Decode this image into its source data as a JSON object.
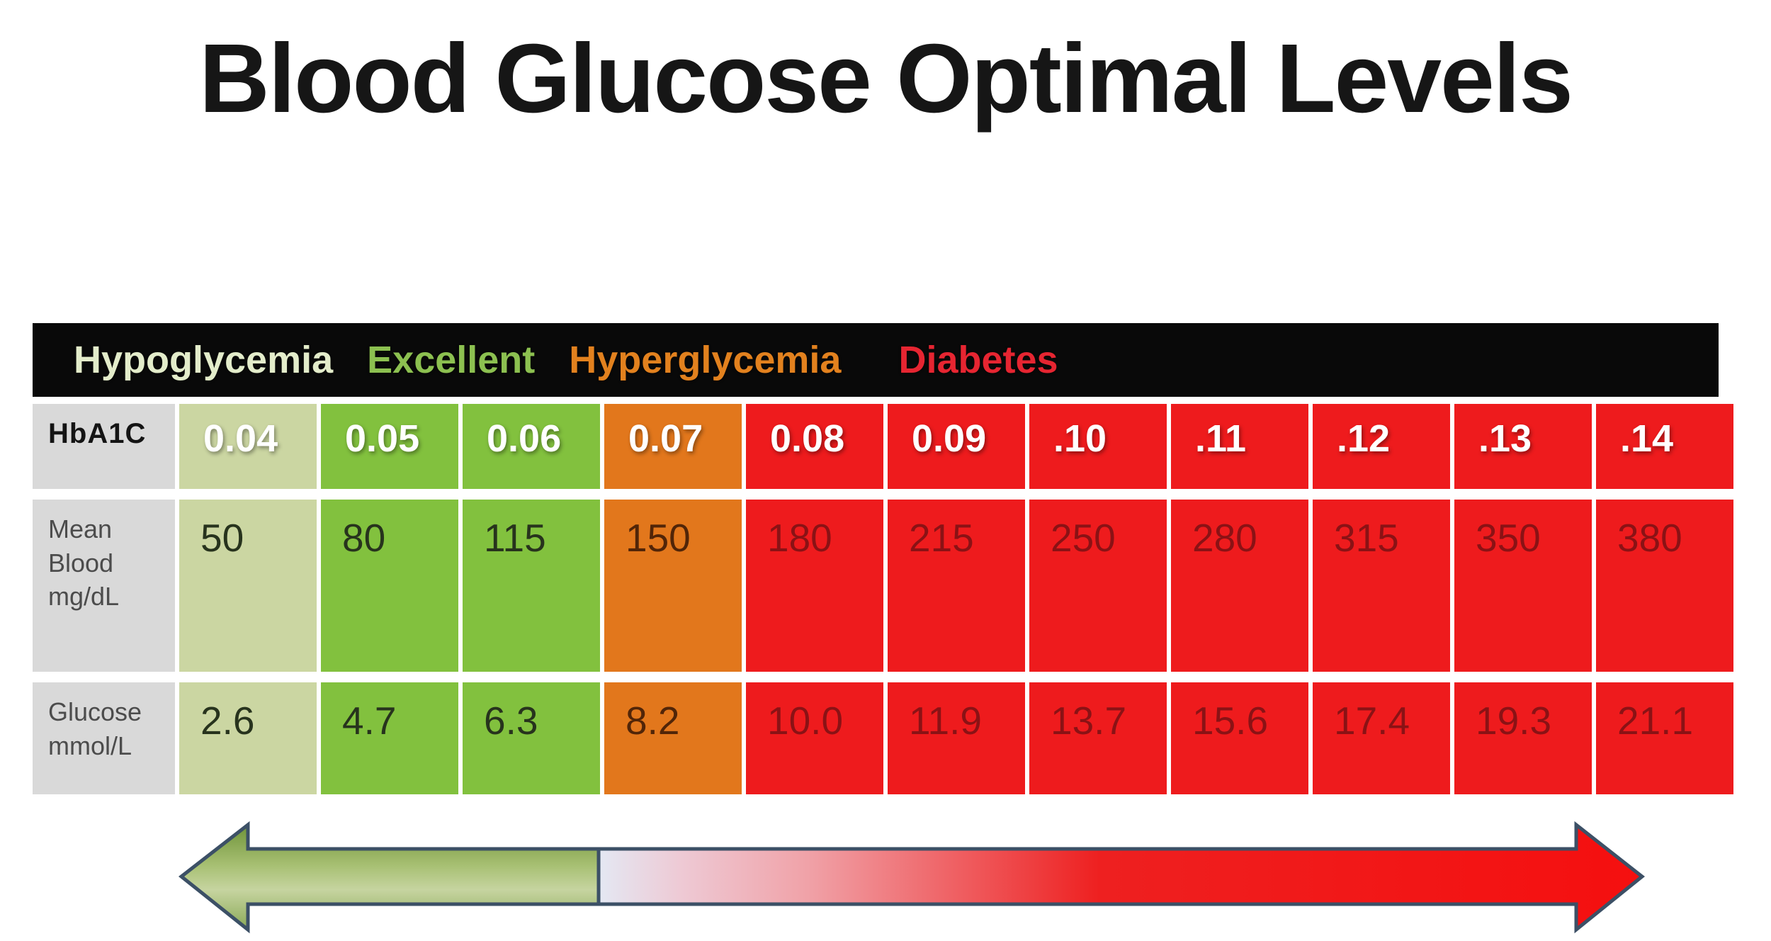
{
  "title": "Blood Glucose Optimal Levels",
  "legend": {
    "items": [
      {
        "key": "hypoglycemia",
        "label": "Hypoglycemia",
        "color": "#e3ecca"
      },
      {
        "key": "excellent",
        "label": "Excellent",
        "color": "#8cc050"
      },
      {
        "key": "hyperglycemia",
        "label": "Hyperglycemia",
        "color": "#e2811e"
      },
      {
        "key": "diabetes",
        "label": "Diabetes",
        "color": "#e62531"
      }
    ]
  },
  "table": {
    "zones": [
      "pale",
      "green",
      "green",
      "orange",
      "red",
      "red",
      "red",
      "red",
      "red",
      "red",
      "red"
    ],
    "rows": [
      {
        "label": "HbA1C",
        "values": [
          "0.04",
          "0.05",
          "0.06",
          "0.07",
          "0.08",
          "0.09",
          ".10",
          ".11",
          ".12",
          ".13",
          ".14"
        ]
      },
      {
        "label": "Mean Blood mg/dL",
        "values": [
          "50",
          "80",
          "115",
          "150",
          "180",
          "215",
          "250",
          "280",
          "315",
          "350",
          "380"
        ]
      },
      {
        "label": "Glucose mmol/L",
        "values": [
          "2.6",
          "4.7",
          "6.3",
          "8.2",
          "10.0",
          "11.9",
          "13.7",
          "15.6",
          "17.4",
          "19.3",
          "21.1"
        ]
      }
    ]
  },
  "colors": {
    "header_bar": "#090909",
    "label_column": "#d9d9d9",
    "hypoglycemia_cell": "#cbd6a2",
    "excellent_cell": "#82c13e",
    "hyperglycemia_cell": "#e2771c",
    "diabetes_cell": "#ee1b1d",
    "arrow_outline": "#3c5066",
    "arrow_green": "#8aa957",
    "arrow_red": "#ee1212"
  },
  "chart_data": {
    "type": "table",
    "title": "Blood Glucose Optimal Levels",
    "zone_by_column": [
      "Hypoglycemia",
      "Excellent",
      "Excellent",
      "Hyperglycemia",
      "Diabetes",
      "Diabetes",
      "Diabetes",
      "Diabetes",
      "Diabetes",
      "Diabetes",
      "Diabetes"
    ],
    "rows": [
      {
        "name": "HbA1C",
        "values": [
          0.04,
          0.05,
          0.06,
          0.07,
          0.08,
          0.09,
          0.1,
          0.11,
          0.12,
          0.13,
          0.14
        ]
      },
      {
        "name": "Mean Blood mg/dL",
        "values": [
          50,
          80,
          115,
          150,
          180,
          215,
          250,
          280,
          315,
          350,
          380
        ]
      },
      {
        "name": "Glucose mmol/L",
        "values": [
          2.6,
          4.7,
          6.3,
          8.2,
          10.0,
          11.9,
          13.7,
          15.6,
          17.4,
          19.3,
          21.1
        ]
      }
    ],
    "annotations": [
      "Double-headed severity arrow below table: green (low/optimal) on left, red (diabetes) on right"
    ]
  }
}
